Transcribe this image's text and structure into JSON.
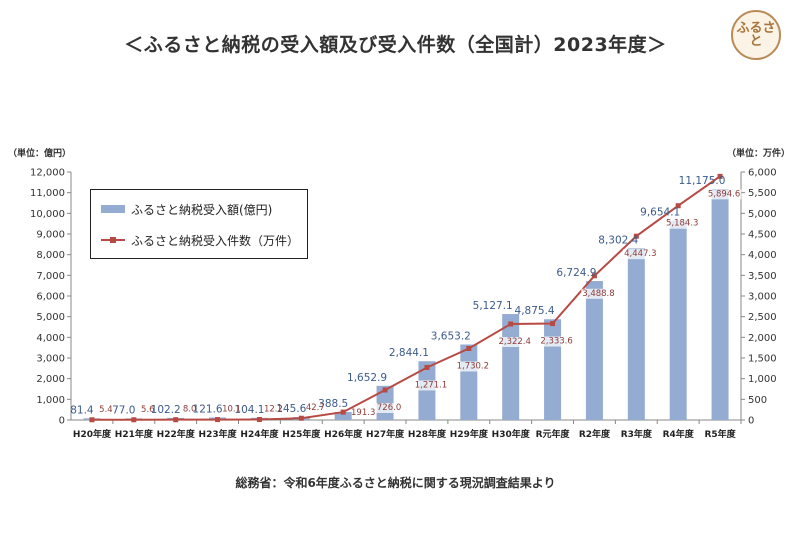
{
  "title": "＜ふるさと納税の受入額及び受入件数（全国計）2023年度＞",
  "logo_text": "ふるさと",
  "unit_left": "（単位：億円）",
  "unit_right": "（単位：万件）",
  "source": "総務省：令和6年度ふるさと納税に関する現況調査結果より",
  "colors": {
    "bar": "#94acd1",
    "line": "#b84a44",
    "bar_label": "#3b5b8c",
    "line_label": "#8c3b36"
  },
  "chart_data": {
    "type": "bar+line",
    "categories": [
      "H20年度",
      "H21年度",
      "H22年度",
      "H23年度",
      "H24年度",
      "H25年度",
      "H26年度",
      "H27年度",
      "H28年度",
      "H29年度",
      "H30年度",
      "R元年度",
      "R2年度",
      "R3年度",
      "R4年度",
      "R5年度"
    ],
    "series": [
      {
        "name": "ふるさと納税受入額(億円)",
        "type": "bar",
        "axis": "left",
        "values": [
          81.4,
          77.0,
          102.2,
          121.6,
          104.1,
          145.6,
          388.5,
          1652.9,
          2844.1,
          3653.2,
          5127.1,
          4875.4,
          6724.9,
          8302.4,
          9654.1,
          11175.0
        ],
        "labels": [
          "81.4",
          "77.0",
          "102.2",
          "121.6",
          "104.1",
          "145.6",
          "388.5",
          "1,652.9",
          "2,844.1",
          "3,653.2",
          "5,127.1",
          "4,875.4",
          "6,724.9",
          "8,302.4",
          "9,654.1",
          "11,175.0"
        ]
      },
      {
        "name": "ふるさと納税受入件数（万件）",
        "type": "line",
        "axis": "right",
        "values": [
          5.4,
          5.6,
          8.0,
          10.1,
          12.2,
          42.7,
          191.3,
          726.0,
          1271.1,
          1730.2,
          2322.4,
          2333.6,
          3488.8,
          4447.3,
          5184.3,
          5894.6
        ],
        "labels": [
          "5.4",
          "5.6",
          "8.0",
          "10.1",
          "12.2",
          "42.7",
          "191.3",
          "726.0",
          "1,271.1",
          "1,730.2",
          "2,322.4",
          "2,333.6",
          "3,488.8",
          "4,447.3",
          "5,184.3",
          "5,894.6"
        ]
      }
    ],
    "y_left": {
      "min": 0,
      "max": 12000,
      "step": 1000,
      "ticks": [
        "0",
        "1,000",
        "2,000",
        "3,000",
        "4,000",
        "5,000",
        "6,000",
        "7,000",
        "8,000",
        "9,000",
        "10,000",
        "11,000",
        "12,000"
      ]
    },
    "y_right": {
      "min": 0,
      "max": 6000,
      "step": 500,
      "ticks": [
        "0",
        "500",
        "1,000",
        "1,500",
        "2,000",
        "2,500",
        "3,000",
        "3,500",
        "4,000",
        "4,500",
        "5,000",
        "5,500",
        "6,000"
      ]
    },
    "grid": false,
    "legend_position": "top-left"
  }
}
